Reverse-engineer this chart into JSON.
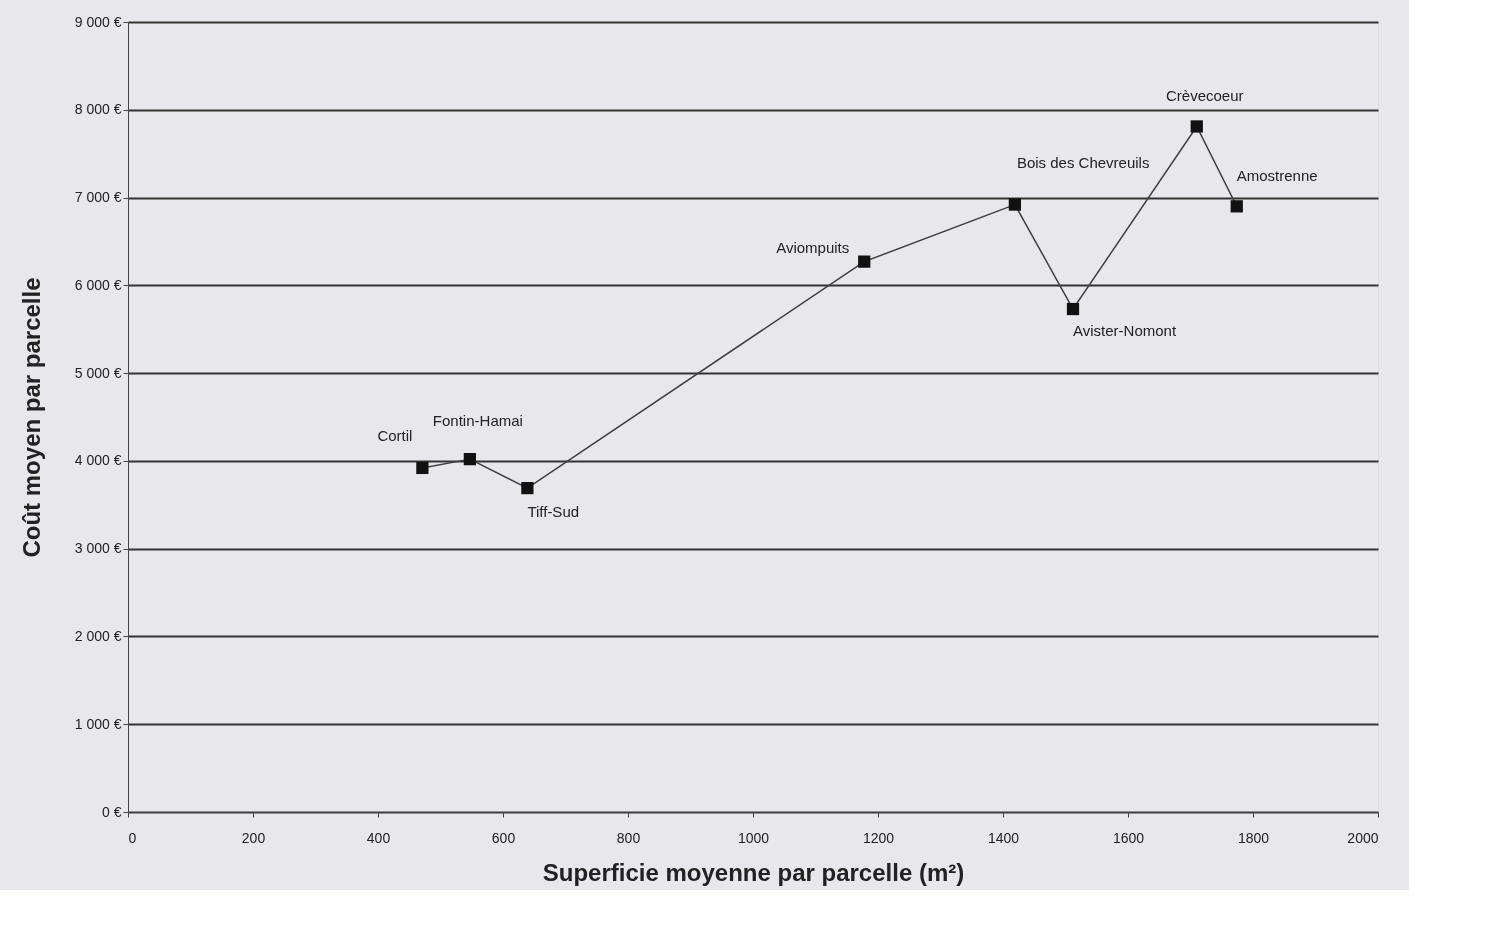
{
  "chart_data": {
    "type": "line",
    "xlabel": "Superficie moyenne par parcelle (m²)",
    "ylabel": "Coût moyen par parcelle",
    "x": [
      471,
      547,
      639,
      1178,
      1419,
      1512,
      1710,
      1774
    ],
    "series": [
      {
        "color": "#404040",
        "values": [
          3920,
          4020,
          3690,
          6270,
          6920,
          5730,
          7810,
          6900
        ]
      }
    ],
    "marker": "square",
    "line_style": "solid",
    "grid": "y",
    "xlim": [
      0,
      2000
    ],
    "xticks": [
      0,
      200,
      400,
      600,
      800,
      1000,
      1200,
      1400,
      1600,
      1800,
      2000
    ],
    "ylim": [
      0,
      9000
    ],
    "yticks": [
      {
        "value": 0,
        "label": "0 €"
      },
      {
        "value": 1000,
        "label": "1 000 €"
      },
      {
        "value": 2000,
        "label": "2 000 €"
      },
      {
        "value": 3000,
        "label": "3 000 €"
      },
      {
        "value": 4000,
        "label": "4 000 €"
      },
      {
        "value": 5000,
        "label": "5 000 €"
      },
      {
        "value": 6000,
        "label": "6 000 €"
      },
      {
        "value": 7000,
        "label": "7 000 €"
      },
      {
        "value": 8000,
        "label": "8 000 €"
      },
      {
        "value": 9000,
        "label": "9 000 €"
      }
    ],
    "annotations": [
      {
        "text": "Cortil",
        "x": 471,
        "y": 3920
      },
      {
        "text": "Fontin-Hamai",
        "x": 547,
        "y": 4020
      },
      {
        "text": "Tiff-Sud",
        "x": 639,
        "y": 3690
      },
      {
        "text": "Aviompuits",
        "x": 1178,
        "y": 6270
      },
      {
        "text": "Bois des Chevreuils",
        "x": 1419,
        "y": 6920
      },
      {
        "text": "Avister-Nomont",
        "x": 1512,
        "y": 5730
      },
      {
        "text": "Crèvecoeur",
        "x": 1710,
        "y": 7810
      },
      {
        "text": "Amostrenne",
        "x": 1774,
        "y": 6900
      }
    ]
  }
}
